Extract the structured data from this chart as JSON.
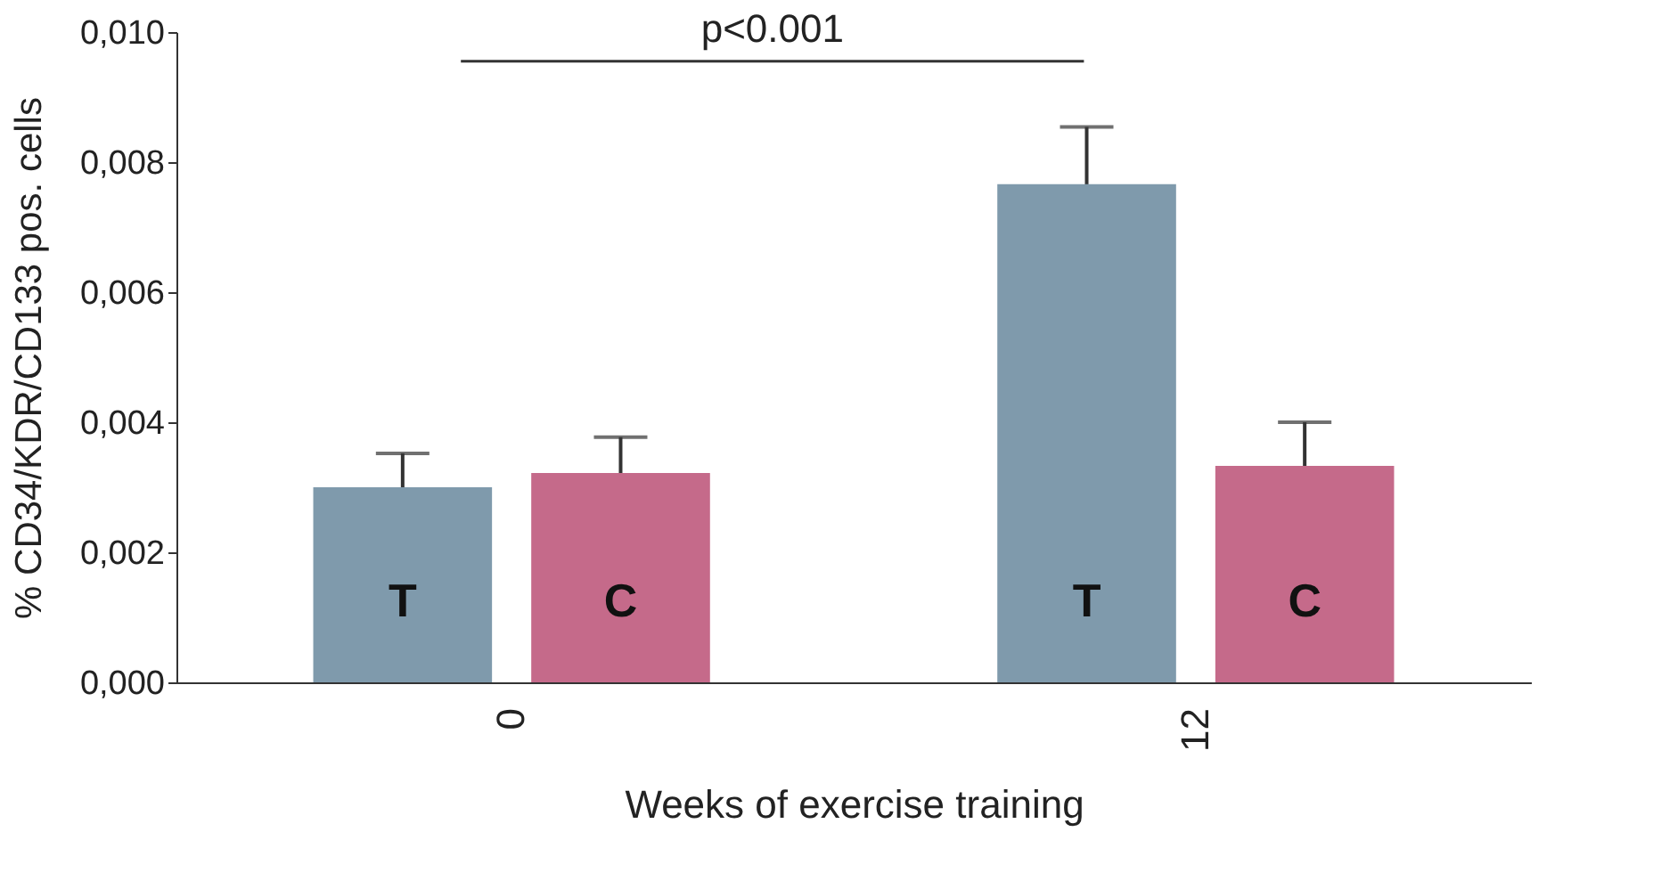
{
  "chart_data": {
    "type": "bar",
    "xlabel": "Weeks of exercise training",
    "ylabel": "% CD34/KDR/CD133 pos. cells",
    "categories": [
      "0",
      "12"
    ],
    "series": [
      {
        "name": "T",
        "color": "#7f9aac",
        "values": [
          0.003,
          0.00766
        ],
        "errors": [
          0.00052,
          0.00088
        ]
      },
      {
        "name": "C",
        "color": "#c56a8a",
        "values": [
          0.00322,
          0.00333
        ],
        "errors": [
          0.00055,
          0.00067
        ]
      }
    ],
    "ylim": [
      0,
      0.01
    ],
    "yticks": [
      {
        "value": 0,
        "label": "0,000"
      },
      {
        "value": 0.002,
        "label": "0,002"
      },
      {
        "value": 0.004,
        "label": "0,004"
      },
      {
        "value": 0.006,
        "label": "0,006"
      },
      {
        "value": 0.008,
        "label": "0,008"
      },
      {
        "value": 0.01,
        "label": "0,010"
      }
    ],
    "grid": false,
    "legend": false,
    "annotations": [
      "p<0.001"
    ]
  }
}
